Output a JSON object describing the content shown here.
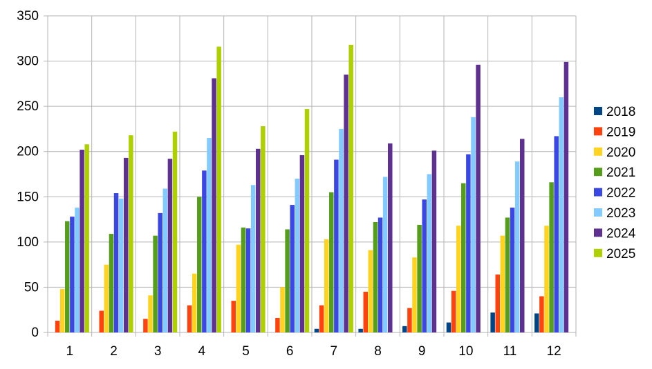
{
  "chart_data": {
    "type": "bar",
    "title": "",
    "xlabel": "",
    "ylabel": "",
    "categories": [
      "1",
      "2",
      "3",
      "4",
      "5",
      "6",
      "7",
      "8",
      "9",
      "10",
      "11",
      "12"
    ],
    "ylim": [
      0,
      350
    ],
    "yticks": [
      "0",
      "50",
      "100",
      "150",
      "200",
      "250",
      "300",
      "350"
    ],
    "grid": true,
    "legend_position": "right",
    "series": [
      {
        "name": "2018",
        "color": "#004586",
        "values": [
          0,
          0,
          0,
          0,
          0,
          0,
          4,
          4,
          7,
          11,
          22,
          21
        ]
      },
      {
        "name": "2019",
        "color": "#ff420e",
        "values": [
          13,
          24,
          15,
          30,
          35,
          16,
          30,
          45,
          27,
          46,
          64,
          40
        ]
      },
      {
        "name": "2020",
        "color": "#ffd320",
        "values": [
          48,
          75,
          41,
          65,
          97,
          50,
          103,
          91,
          83,
          118,
          107,
          118
        ]
      },
      {
        "name": "2021",
        "color": "#579d1c",
        "values": [
          123,
          109,
          107,
          150,
          116,
          114,
          155,
          122,
          119,
          165,
          127,
          166
        ]
      },
      {
        "name": "2022",
        "color": "#3b47e2",
        "values": [
          128,
          154,
          132,
          179,
          115,
          141,
          191,
          127,
          147,
          197,
          138,
          217
        ]
      },
      {
        "name": "2023",
        "color": "#83caff",
        "values": [
          138,
          148,
          159,
          215,
          163,
          170,
          225,
          172,
          175,
          238,
          189,
          260
        ]
      },
      {
        "name": "2024",
        "color": "#5e3191",
        "values": [
          202,
          193,
          192,
          281,
          203,
          196,
          285,
          209,
          201,
          296,
          214,
          299
        ]
      },
      {
        "name": "2025",
        "color": "#aecf00",
        "values": [
          208,
          218,
          222,
          316,
          228,
          247,
          318,
          0,
          0,
          0,
          0,
          0
        ]
      }
    ]
  }
}
